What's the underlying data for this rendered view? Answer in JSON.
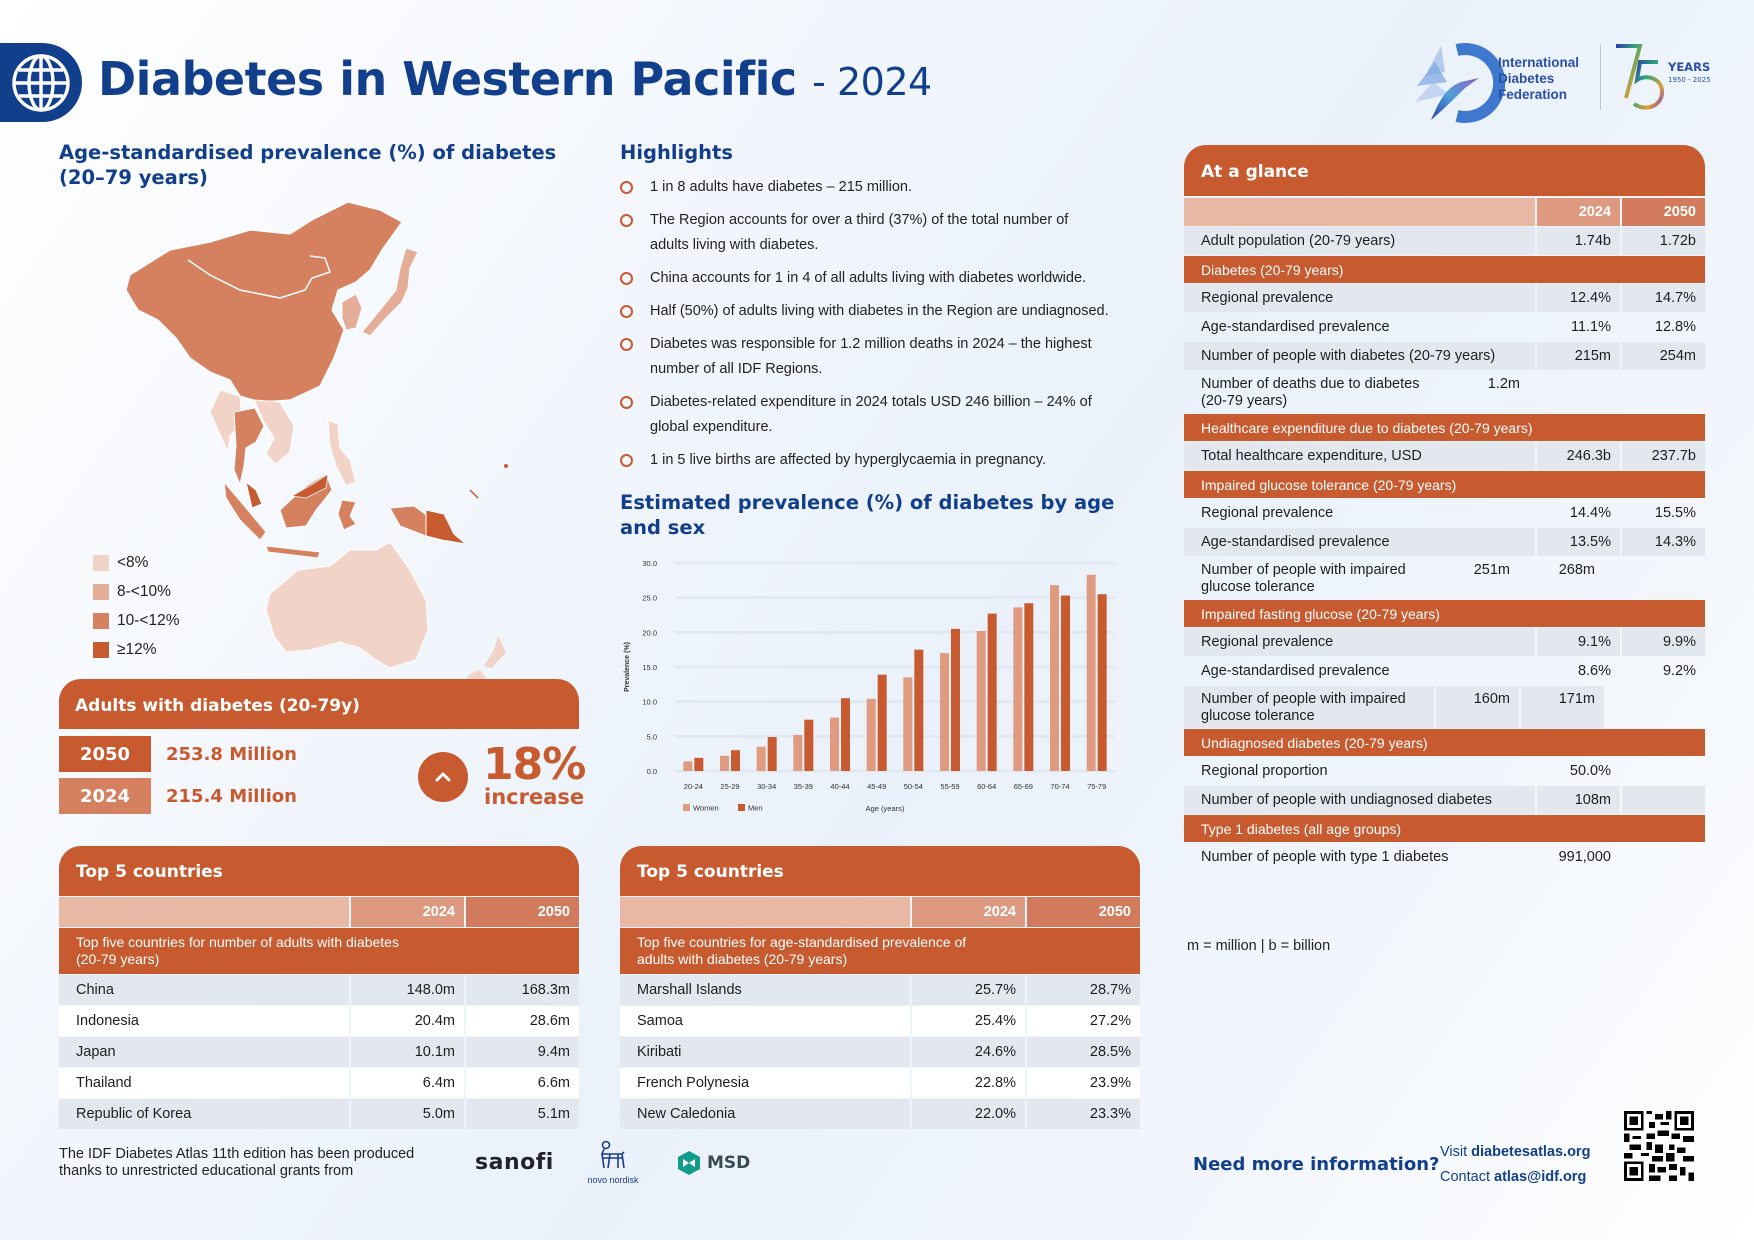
{
  "header": {
    "title": "Diabetes in Western Pacific",
    "year": "- 2024",
    "globe_icon": "globe-icon",
    "org_logo": {
      "line1": "International",
      "line2": "Diabetes",
      "line3": "Federation"
    },
    "anniversary": {
      "number": "75",
      "label": "YEARS",
      "range": "1950 - 2025"
    }
  },
  "map": {
    "title": "Age-standardised prevalence (%) of diabetes (20–79 years)",
    "legend": [
      {
        "label": "<8%",
        "color": "#f2d3c7"
      },
      {
        "label": "8-<10%",
        "color": "#e4ad97"
      },
      {
        "label": "10-<12%",
        "color": "#d5805f"
      },
      {
        "label": "≥12%",
        "color": "#c85a30"
      }
    ]
  },
  "highlights": {
    "title": "Highlights",
    "items": [
      "1 in 8 adults have diabetes – 215 million.",
      "The Region accounts for over a third (37%) of the total number of adults living with diabetes.",
      "China accounts for 1 in 4 of all adults living with diabetes worldwide.",
      "Half (50%) of adults living with diabetes in the Region are undiagnosed.",
      "Diabetes was responsible for 1.2 million deaths in 2024 – the highest number of all IDF Regions.",
      "Diabetes-related expenditure in 2024 totals USD 246 billion – 24% of global expenditure.",
      "1 in 5 live births are affected by hyperglycaemia in pregnancy."
    ]
  },
  "adults": {
    "title": "Adults with diabetes (20-79y)",
    "rows": [
      {
        "year": "2050",
        "value": "253.8 Million"
      },
      {
        "year": "2024",
        "value": "215.4 Million"
      }
    ],
    "increase_pct": "18%",
    "increase_label": "increase"
  },
  "top5_number": {
    "title": "Top 5 countries",
    "col1": "2024",
    "col2": "2050",
    "subtitle": "Top five countries for number of adults with diabetes (20-79 years)",
    "rows": [
      {
        "country": "China",
        "v2024": "148.0m",
        "v2050": "168.3m"
      },
      {
        "country": "Indonesia",
        "v2024": "20.4m",
        "v2050": "28.6m"
      },
      {
        "country": "Japan",
        "v2024": "10.1m",
        "v2050": "9.4m"
      },
      {
        "country": "Thailand",
        "v2024": "6.4m",
        "v2050": "6.6m"
      },
      {
        "country": "Republic of Korea",
        "v2024": "5.0m",
        "v2050": "5.1m"
      }
    ]
  },
  "top5_prev": {
    "title": "Top 5 countries",
    "col1": "2024",
    "col2": "2050",
    "subtitle": "Top five countries for age-standardised prevalence of adults with diabetes (20-79 years)",
    "rows": [
      {
        "country": "Marshall Islands",
        "v2024": "25.7%",
        "v2050": "28.7%"
      },
      {
        "country": "Samoa",
        "v2024": "25.4%",
        "v2050": "27.2%"
      },
      {
        "country": "Kiribati",
        "v2024": "24.6%",
        "v2050": "28.5%"
      },
      {
        "country": "French Polynesia",
        "v2024": "22.8%",
        "v2050": "23.9%"
      },
      {
        "country": "New Caledonia",
        "v2024": "22.0%",
        "v2050": "23.3%"
      }
    ]
  },
  "glance": {
    "title": "At a glance",
    "col1": "2024",
    "col2": "2050",
    "adult_pop": {
      "label": "Adult population (20-79 years)",
      "v2024": "1.74b",
      "v2050": "1.72b"
    },
    "sections": [
      {
        "heading": "Diabetes (20-79 years)",
        "rows": [
          {
            "label": "Regional prevalence",
            "v2024": "12.4%",
            "v2050": "14.7%"
          },
          {
            "label": "Age-standardised prevalence",
            "v2024": "11.1%",
            "v2050": "12.8%"
          },
          {
            "label": "Number of people with diabetes (20-79 years)",
            "v2024": "215m",
            "v2050": "254m"
          },
          {
            "label": "Number of deaths due to diabetes (20-79 years)",
            "v2024": "1.2m",
            "v2050": ""
          }
        ]
      },
      {
        "heading": "Healthcare expenditure due to diabetes (20-79 years)",
        "rows": [
          {
            "label": "Total healthcare expenditure, USD",
            "v2024": "246.3b",
            "v2050": "237.7b"
          }
        ]
      },
      {
        "heading": "Impaired glucose tolerance (20-79 years)",
        "rows": [
          {
            "label": "Regional prevalence",
            "v2024": "14.4%",
            "v2050": "15.5%"
          },
          {
            "label": "Age-standardised prevalence",
            "v2024": "13.5%",
            "v2050": "14.3%"
          },
          {
            "label": "Number of people with impaired glucose tolerance",
            "v2024": "251m",
            "v2050": "268m"
          }
        ]
      },
      {
        "heading": "Impaired fasting glucose (20-79 years)",
        "rows": [
          {
            "label": "Regional prevalence",
            "v2024": "9.1%",
            "v2050": "9.9%"
          },
          {
            "label": "Age-standardised prevalence",
            "v2024": "8.6%",
            "v2050": "9.2%"
          },
          {
            "label": "Number of people with impaired glucose tolerance",
            "v2024": "160m",
            "v2050": "171m"
          }
        ]
      },
      {
        "heading": "Undiagnosed diabetes (20-79 years)",
        "rows": [
          {
            "label": "Regional proportion",
            "v2024": "50.0%",
            "v2050": ""
          },
          {
            "label": "Number of people with undiagnosed diabetes",
            "v2024": "108m",
            "v2050": ""
          }
        ]
      },
      {
        "heading": "Type 1 diabetes (all age groups)",
        "rows": [
          {
            "label": "Number of people with type 1 diabetes",
            "v2024": "991,000",
            "v2050": ""
          }
        ]
      }
    ],
    "units_note": "m = million | b = billion"
  },
  "chart_data": {
    "type": "bar",
    "title": "Estimated prevalence (%) of diabetes by age and sex",
    "xlabel": "Age (years)",
    "ylabel": "Prevalence (%)",
    "ylim": [
      0,
      30
    ],
    "yticks": [
      "0.0",
      "5.0",
      "10.0",
      "15.0",
      "20.0",
      "25.0",
      "30.0"
    ],
    "grid": true,
    "legend_position": "bottom-left",
    "categories": [
      "20-24",
      "25-29",
      "30-34",
      "35-39",
      "40-44",
      "45-49",
      "50-54",
      "55-59",
      "60-64",
      "65-69",
      "70-74",
      "75-79"
    ],
    "series": [
      {
        "name": "Women",
        "color": "#e09a80",
        "values": [
          1.4,
          2.2,
          3.5,
          5.2,
          7.7,
          10.4,
          13.5,
          17.0,
          20.2,
          23.6,
          26.8,
          28.3
        ]
      },
      {
        "name": "Men",
        "color": "#c85a30",
        "values": [
          1.9,
          3.0,
          4.9,
          7.4,
          10.5,
          13.9,
          17.5,
          20.5,
          22.7,
          24.2,
          25.3,
          25.5
        ]
      }
    ]
  },
  "footer": {
    "grant_text_line1": "The IDF Diabetes Atlas 11th edition has been produced",
    "grant_text_line2": "thanks to unrestricted educational grants from",
    "sponsors": [
      "sanofi",
      "novo nordisk",
      "MSD"
    ],
    "need_info": "Need more information?",
    "visit_prefix": "Visit",
    "visit_link": "diabetesatlas.org",
    "contact_prefix": "Contact",
    "contact_link": "atlas@idf.org",
    "qr_icon": "qr-code-icon"
  }
}
